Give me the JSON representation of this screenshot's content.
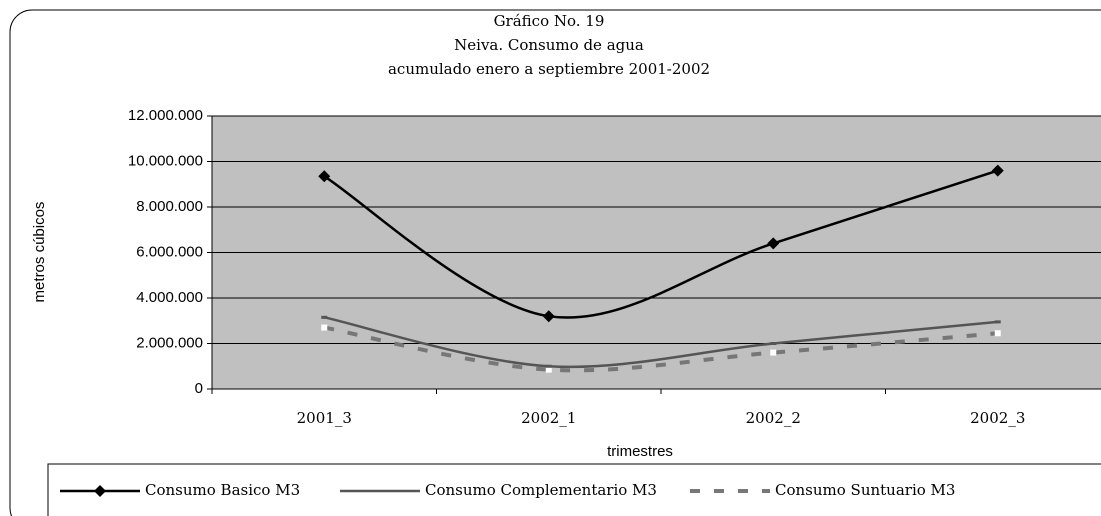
{
  "chart_data": {
    "type": "line",
    "title": [
      "Gráfico No. 19",
      "Neiva.  Consumo de agua",
      "acumulado enero a septiembre 2001-2002"
    ],
    "xlabel": "trimestres",
    "ylabel": "metros cúbicos",
    "categories": [
      "2001_3",
      "2002_1",
      "2002_2",
      "2002_3"
    ],
    "series": [
      {
        "name": "Consumo Basico M3",
        "color": "#000000",
        "values": [
          9350000,
          3200000,
          6400000,
          9600000
        ]
      },
      {
        "name": "Consumo Complementario M3",
        "color": "#555555",
        "values": [
          3150000,
          1000000,
          2000000,
          2950000
        ]
      },
      {
        "name": "Consumo Suntuario M3",
        "color": "#777777",
        "values": [
          2700000,
          850000,
          1600000,
          2450000
        ]
      }
    ],
    "ylim": [
      0,
      12000000
    ],
    "yticks": [
      {
        "value": 0,
        "label": "0"
      },
      {
        "value": 2000000,
        "label": "2.000.000"
      },
      {
        "value": 4000000,
        "label": "4.000.000"
      },
      {
        "value": 6000000,
        "label": "6.000.000"
      },
      {
        "value": 8000000,
        "label": "8.000.000"
      },
      {
        "value": 10000000,
        "label": "10.000.000"
      },
      {
        "value": 12000000,
        "label": "12.000.000"
      }
    ],
    "grid": true,
    "legend": "bottom"
  }
}
